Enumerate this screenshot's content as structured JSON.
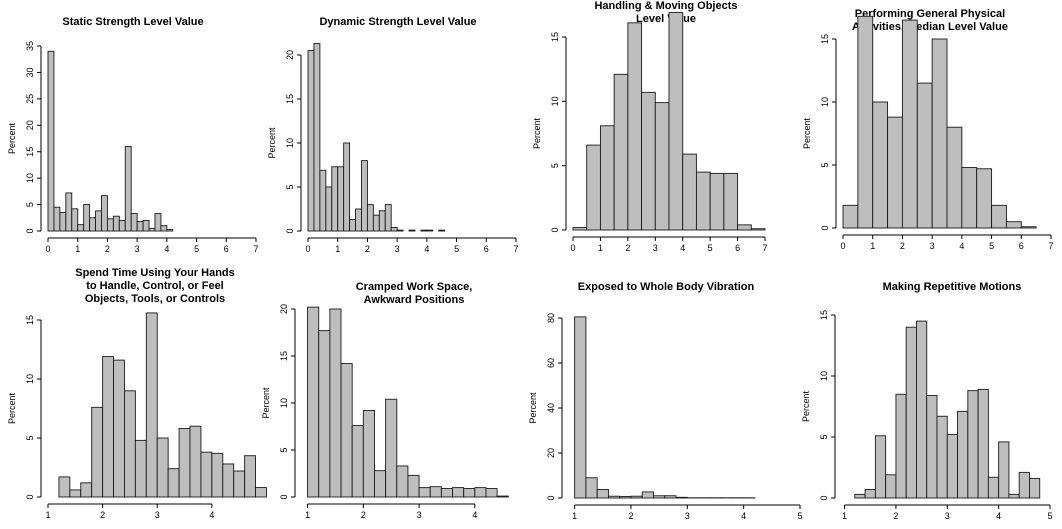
{
  "chart_data": [
    {
      "type": "bar",
      "title": "Static Strength Level Value",
      "xlabel": "",
      "ylabel": "Percent",
      "xlim": [
        0,
        7
      ],
      "ylim": [
        0,
        35
      ],
      "xticks": [
        "0",
        "1",
        "2",
        "3",
        "4",
        "5",
        "6",
        "7"
      ],
      "yticks": [
        "0",
        "5",
        "10",
        "15",
        "20",
        "25",
        "30",
        "35"
      ],
      "bin_start": 0,
      "bin_width": 0.2,
      "values": [
        34,
        4.5,
        3.5,
        7.2,
        4.2,
        1.2,
        5,
        2.5,
        3.8,
        6.7,
        2.3,
        2.8,
        2,
        16,
        3.3,
        1.8,
        2,
        0.5,
        3.3,
        1,
        0.3
      ]
    },
    {
      "type": "bar",
      "title": "Dynamic Strength Level Value",
      "xlabel": "",
      "ylabel": "Percent",
      "xlim": [
        0,
        7
      ],
      "ylim": [
        0,
        20
      ],
      "xticks": [
        "0",
        "1",
        "2",
        "3",
        "4",
        "5",
        "6",
        "7"
      ],
      "yticks": [
        "0",
        "5",
        "10",
        "15",
        "20"
      ],
      "bin_start": 0,
      "bin_width": 0.2,
      "values": [
        20.5,
        21.3,
        6.9,
        5,
        7.3,
        7.3,
        10,
        1.3,
        2.5,
        8,
        3,
        1.8,
        2.3,
        3,
        0.4,
        0.1,
        0,
        0.1,
        0,
        0.1,
        0.1,
        0,
        0.1
      ]
    },
    {
      "type": "bar",
      "title": "Handling & Moving Objects\nLevel Value",
      "xlabel": "",
      "ylabel": "Percent",
      "xlim": [
        0,
        7
      ],
      "ylim": [
        0,
        15
      ],
      "xticks": [
        "0",
        "1",
        "2",
        "3",
        "4",
        "5",
        "6",
        "7"
      ],
      "yticks": [
        "0",
        "5",
        "10",
        "15"
      ],
      "bin_start": 0,
      "bin_width": 0.5,
      "values": [
        0.2,
        6.6,
        8.1,
        12.1,
        16.1,
        10.7,
        9.9,
        16.9,
        5.9,
        4.5,
        4.4,
        4.4,
        0.4,
        0.1
      ]
    },
    {
      "type": "bar",
      "title": "Performing General Physical\nActivities, Median Level Value",
      "xlabel": "",
      "ylabel": "Percent",
      "xlim": [
        0,
        7
      ],
      "ylim": [
        0,
        15
      ],
      "xticks": [
        "0",
        "1",
        "2",
        "3",
        "4",
        "5",
        "6",
        "7"
      ],
      "yticks": [
        "0",
        "5",
        "10",
        "15"
      ],
      "bin_start": 0,
      "bin_width": 0.5,
      "values": [
        1.8,
        16.8,
        10,
        8.8,
        16.5,
        11.5,
        15,
        8,
        4.8,
        4.7,
        1.8,
        0.5,
        0.1
      ]
    },
    {
      "type": "bar",
      "title": "Spend Time Using Your Hands\nto Handle, Control, or Feel\nObjects, Tools, or Controls",
      "xlabel": "",
      "ylabel": "Percent",
      "xlim": [
        1,
        4.9
      ],
      "ylim": [
        0,
        15
      ],
      "xticks": [
        "1",
        "2",
        "3",
        "4"
      ],
      "yticks": [
        "0",
        "5",
        "10",
        "15"
      ],
      "bin_start": 1.2,
      "bin_width": 0.2,
      "values": [
        1.7,
        0.6,
        1.2,
        7.6,
        11.9,
        11.6,
        9,
        4.8,
        15.6,
        5,
        2.4,
        5.8,
        6,
        3.8,
        3.7,
        2.8,
        2.2,
        3.5,
        0.8
      ]
    },
    {
      "type": "bar",
      "title": "Cramped Work Space,\nAwkward Positions",
      "xlabel": "",
      "ylabel": "Percent",
      "xlim": [
        0.9,
        4.9
      ],
      "ylim": [
        0,
        20
      ],
      "xticks": [
        "1",
        "2",
        "3",
        "4"
      ],
      "yticks": [
        "0",
        "5",
        "10",
        "15",
        "20"
      ],
      "bin_start": 1,
      "bin_width": 0.2,
      "values": [
        20.2,
        17.7,
        20,
        14.2,
        7.6,
        9.2,
        2.8,
        10.4,
        3.3,
        2.3,
        1,
        1.1,
        0.9,
        1,
        0.9,
        1,
        0.9,
        0.1
      ]
    },
    {
      "type": "bar",
      "title": "Exposed to Whole Body Vibration",
      "xlabel": "",
      "ylabel": "Percent",
      "xlim": [
        0.9,
        5
      ],
      "ylim": [
        0,
        80
      ],
      "xticks": [
        "1",
        "2",
        "3",
        "4",
        "5"
      ],
      "yticks": [
        "0",
        "20",
        "40",
        "60",
        "80"
      ],
      "bin_start": 1,
      "bin_width": 0.2,
      "values": [
        80.5,
        9,
        3.8,
        0.8,
        0.7,
        0.8,
        2.7,
        1,
        1,
        0.3,
        0.1,
        0.1,
        0.1,
        0.1,
        0.1,
        0.1
      ]
    },
    {
      "type": "bar",
      "title": "Making Repetitive Motions",
      "xlabel": "",
      "ylabel": "Percent",
      "xlim": [
        0.95,
        5
      ],
      "ylim": [
        0,
        15
      ],
      "xticks": [
        "1",
        "2",
        "3",
        "4",
        "5"
      ],
      "yticks": [
        "0",
        "5",
        "10",
        "15"
      ],
      "bin_start": 1.2,
      "bin_width": 0.2,
      "values": [
        0.3,
        0.7,
        5.1,
        1.9,
        8.5,
        14,
        14.5,
        8.4,
        6.7,
        5.2,
        7.1,
        8.8,
        8.9,
        1.7,
        4.6,
        0.3,
        2.1,
        1.6
      ]
    }
  ]
}
